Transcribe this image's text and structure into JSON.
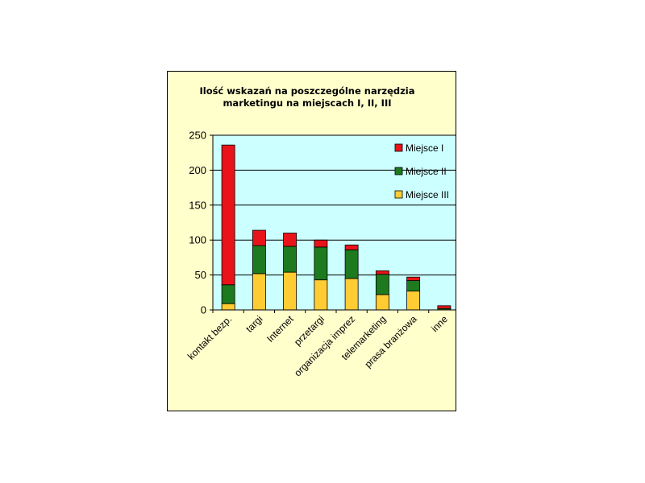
{
  "chart_data": {
    "type": "bar",
    "stacked": true,
    "title_lines": [
      "Ilość wskazań na poszczególne narzędzia",
      "marketingu na miejscach I, II, III"
    ],
    "categories": [
      "kontakt bezp.",
      "targi",
      "Internet",
      "przetargi",
      "organizacja imprez",
      "telemarketing",
      "prasa branżowa",
      "inne"
    ],
    "series": [
      {
        "name": "Miejsce III",
        "color": "#ffcc33",
        "values": [
          9,
          52,
          54,
          43,
          45,
          22,
          27,
          0
        ]
      },
      {
        "name": "Miejsce II",
        "color": "#1e7a1e",
        "values": [
          27,
          40,
          37,
          47,
          41,
          29,
          15,
          2
        ]
      },
      {
        "name": "Miejsce I",
        "color": "#e8141a",
        "values": [
          200,
          22,
          19,
          10,
          7,
          5,
          5,
          4
        ]
      }
    ],
    "legend_order": [
      "Miejsce I",
      "Miejsce II",
      "Miejsce III"
    ],
    "y_ticks": [
      0,
      50,
      100,
      150,
      200,
      250
    ],
    "ylim": [
      0,
      250
    ],
    "grid": true,
    "legend_position": "top-right",
    "plot_background": "#ccffff",
    "frame_background": "#ffffcc"
  }
}
